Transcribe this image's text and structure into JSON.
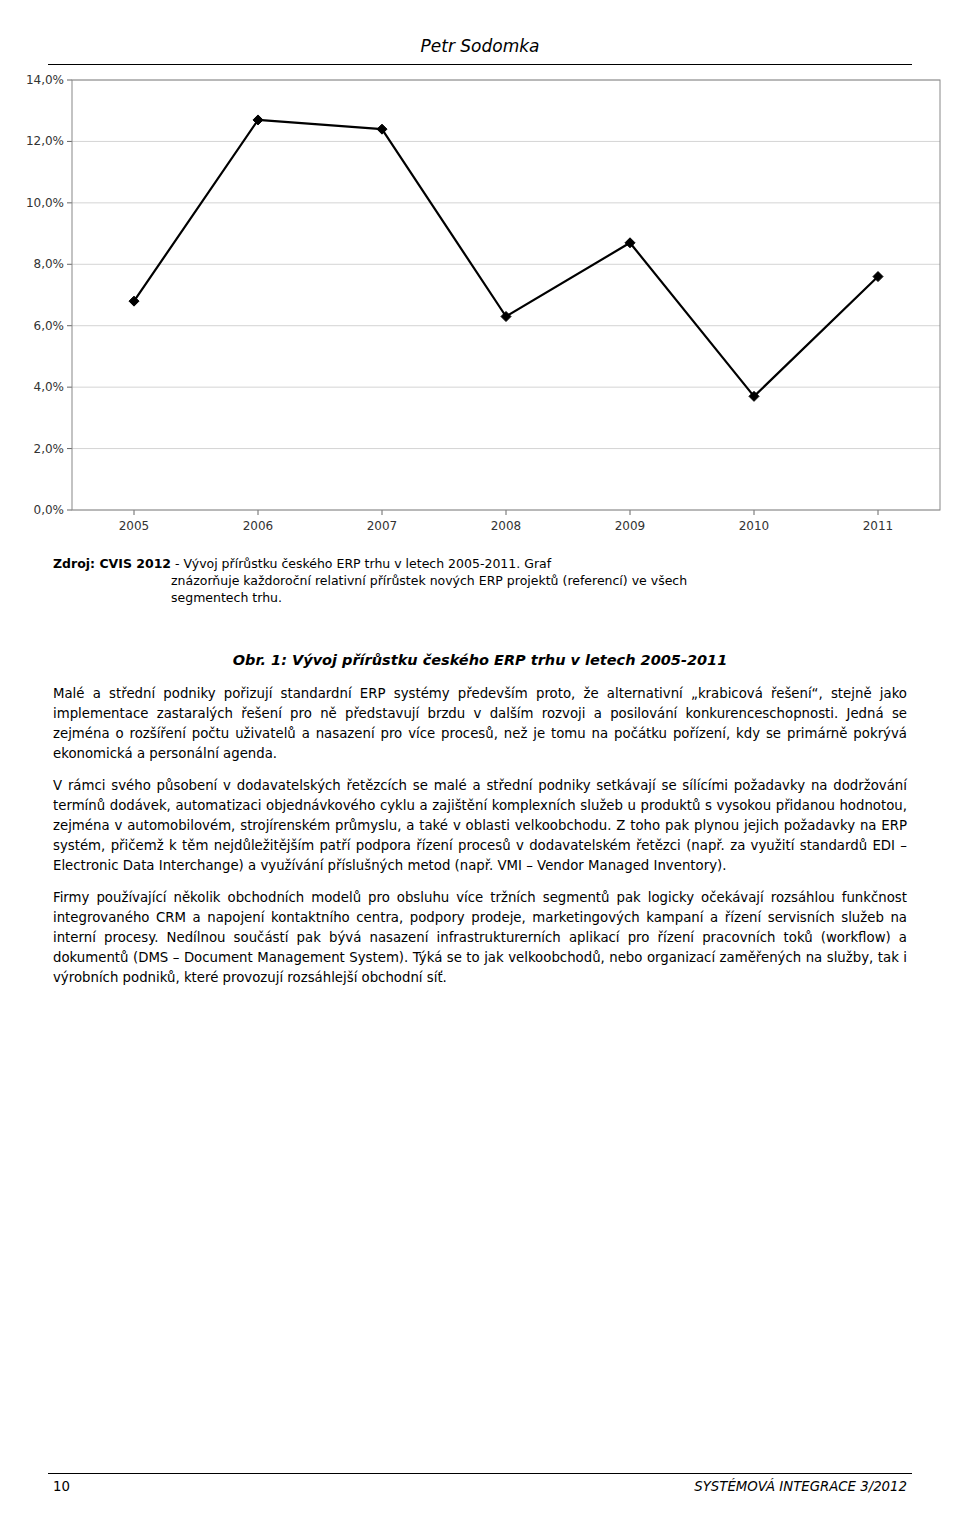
{
  "chart_data": {
    "type": "line",
    "x": [
      2005,
      2006,
      2007,
      2008,
      2009,
      2010,
      2011
    ],
    "values": [
      0.068,
      0.127,
      0.124,
      0.063,
      0.087,
      0.037,
      0.076
    ],
    "xlim": [
      2004.5,
      2011.5
    ],
    "xticks": [
      2005,
      2006,
      2007,
      2008,
      2009,
      2010,
      2011
    ],
    "ylim": [
      0.0,
      0.14
    ],
    "yticks": [
      {
        "value": 0.0,
        "label": "0,0%"
      },
      {
        "value": 0.02,
        "label": "2,0%"
      },
      {
        "value": 0.04,
        "label": "4,0%"
      },
      {
        "value": 0.06,
        "label": "6,0%"
      },
      {
        "value": 0.08,
        "label": "8,0%"
      },
      {
        "value": 0.1,
        "label": "10,0%"
      },
      {
        "value": 0.12,
        "label": "12,0%"
      },
      {
        "value": 0.14,
        "label": "14,0%"
      }
    ],
    "color": "#000000",
    "marker": "diamond",
    "line_style": "solid",
    "grid": true
  },
  "page": {
    "header": "Petr Sodomka",
    "source_bold": "Zdroj: CVIS 2012",
    "source_normal": " - Vývoj přírůstku českého ERP trhu v letech 2005-2011. Graf\nznázorňuje každoroční relativní přírůstek nových ERP projektů (referencí) ve všech\nsegmentech trhu.",
    "caption": "Obr. 1: Vývoj přírůstku českého ERP trhu v letech 2005-2011",
    "paragraphs": [
      "Malé a střední podniky pořizují standardní ERP systémy především proto, že alternativní „krabicová řešení“, stejně jako implementace zastaralých řešení pro ně představují brzdu v dalším rozvoji a posilování konkurenceschopnosti. Jedná se zejména o rozšíření počtu uživatelů a nasazení pro více procesů, než je tomu na počátku pořízení, kdy se primárně pokrývá ekonomická a personální agenda.",
      "V rámci svého působení v dodavatelských řetězcích se malé a střední podniky setkávají se sílícími požadavky na dodržování termínů dodávek, automatizaci objednávkového cyklu a zajištění komplexních služeb u produktů s vysokou přidanou hodnotou, zejména v automobilovém, strojírenském průmyslu, a také v oblasti velkoobchodu. Z toho pak plynou jejich požadavky na ERP systém, přičemž k těm nejdůležitějším patří podpora řízení procesů v dodavatelském řetězci (např. za využití standardů EDI – Electronic Data Interchange) a využívání příslušných metod (např. VMI – Vendor Managed Inventory).",
      "Firmy používající několik obchodních modelů pro obsluhu více tržních segmentů pak logicky očekávají rozsáhlou funkčnost integrovaného CRM a napojení kontaktního centra, podpory prodeje, marketingových kampaní a řízení servisních služeb na interní procesy. Nedílnou součástí pak bývá nasazení infrastrukturerních aplikací pro řízení pracovních toků (workflow) a dokumentů (DMS – Document Management System). Týká se to jak velkoobchodů, nebo organizací zaměřených na služby, tak i výrobních podniků, které provozují rozsáhlejší obchodní síť."
    ],
    "footer_left": "10",
    "footer_right": "SYSTÉMOVÁ INTEGRACE 3/2012"
  }
}
